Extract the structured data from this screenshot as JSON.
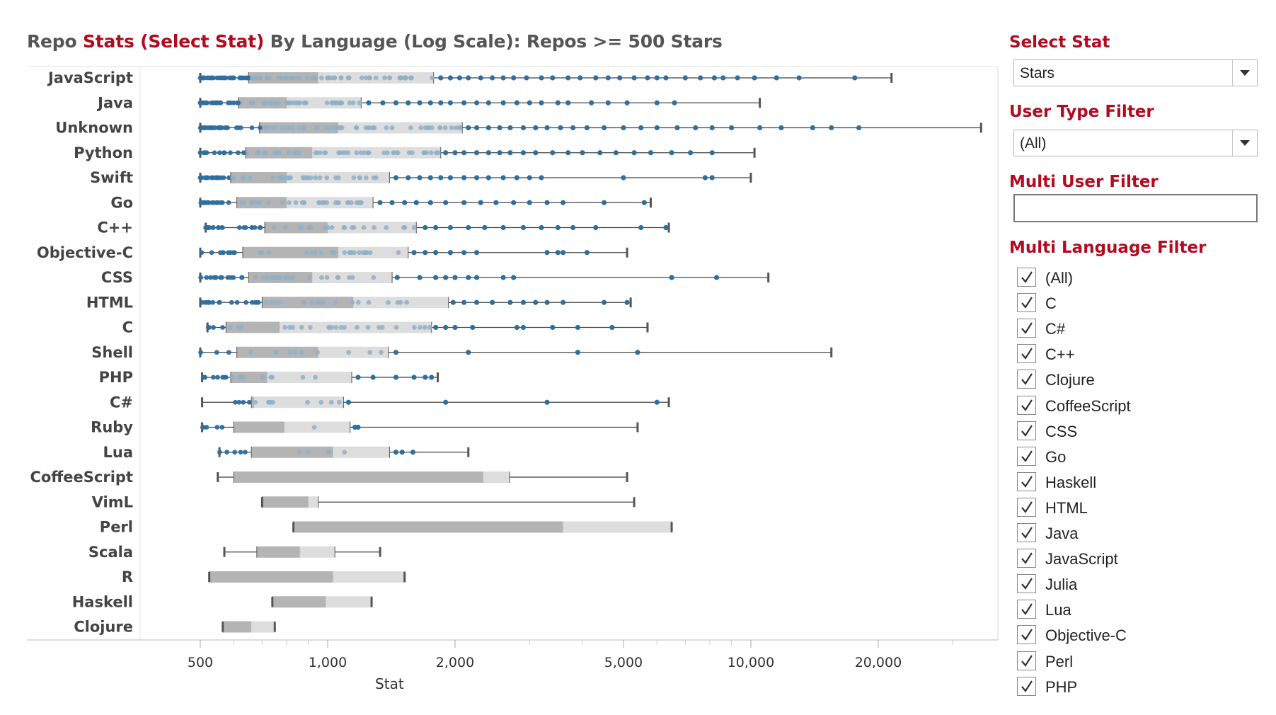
{
  "title": {
    "prefix": "Repo ",
    "accent": "Stats (Select Stat)",
    "suffix": " By Language (Log Scale): Repos >= 500 Stars"
  },
  "colors": {
    "accent": "#b30a1f",
    "dot_dark": "#2f6f9f",
    "dot_light": "#8fb0c9",
    "box_dark": "#b4b4b4",
    "box_light": "#dddddd",
    "whisker": "#444444"
  },
  "chart_data": {
    "type": "box-plot with jittered points",
    "scale": "log",
    "xlabel": "Stat",
    "xlim": [
      400,
      40000
    ],
    "xticks": [
      500,
      1000,
      2000,
      5000,
      10000,
      20000
    ],
    "xtick_labels": [
      "500",
      "1,000",
      "2,000",
      "5,000",
      "10,000",
      "20,000"
    ],
    "grid": false,
    "series": [
      {
        "name": "JavaScript",
        "min": 500,
        "q1": 650,
        "median": 950,
        "q3": 1780,
        "max": 21500,
        "outliers": [
          1850,
          1950,
          2050,
          2150,
          2300,
          2450,
          2600,
          2750,
          2950,
          3200,
          3400,
          3700,
          3950,
          4300,
          4600,
          4900,
          5300,
          5700,
          6000,
          6300,
          7000,
          7600,
          8200,
          8600,
          9300,
          10200,
          11500,
          13000,
          17600
        ]
      },
      {
        "name": "Java",
        "min": 500,
        "q1": 615,
        "median": 800,
        "q3": 1200,
        "max": 10500,
        "outliers": [
          1250,
          1350,
          1450,
          1550,
          1650,
          1750,
          1850,
          1950,
          2100,
          2250,
          2400,
          2600,
          2800,
          3000,
          3200,
          3500,
          3700,
          4200,
          4600,
          5100,
          6000,
          6600
        ]
      },
      {
        "name": "Unknown",
        "min": 500,
        "q1": 690,
        "median": 1060,
        "q3": 2080,
        "max": 35000,
        "outliers": [
          2150,
          2250,
          2400,
          2550,
          2700,
          2900,
          3100,
          3300,
          3550,
          3800,
          4100,
          4500,
          5000,
          5500,
          6000,
          6700,
          7400,
          8100,
          9000,
          10500,
          11800,
          14000,
          15500,
          18000
        ]
      },
      {
        "name": "Python",
        "min": 500,
        "q1": 640,
        "median": 920,
        "q3": 1850,
        "max": 10200,
        "outliers": [
          1900,
          2000,
          2100,
          2250,
          2400,
          2550,
          2700,
          2900,
          3100,
          3400,
          3700,
          4000,
          4400,
          4800,
          5300,
          5800,
          6500,
          7200,
          8100
        ]
      },
      {
        "name": "Swift",
        "min": 500,
        "q1": 590,
        "median": 800,
        "q3": 1400,
        "max": 10000,
        "outliers": [
          1450,
          1550,
          1650,
          1750,
          1850,
          1950,
          2100,
          2250,
          2400,
          2600,
          2800,
          3000,
          3200,
          5000,
          7800,
          8100
        ]
      },
      {
        "name": "Go",
        "min": 500,
        "q1": 610,
        "median": 800,
        "q3": 1280,
        "max": 5800,
        "outliers": [
          1330,
          1420,
          1520,
          1620,
          1750,
          1900,
          2100,
          2300,
          2500,
          2750,
          3000,
          3300,
          3600,
          4500,
          5600
        ]
      },
      {
        "name": "C++",
        "min": 515,
        "q1": 710,
        "median": 1000,
        "q3": 1620,
        "max": 6400,
        "outliers": [
          1700,
          1800,
          1950,
          2150,
          2350,
          2600,
          2900,
          3200,
          3500,
          3800,
          4300,
          5500,
          6300
        ]
      },
      {
        "name": "Objective-C",
        "min": 500,
        "q1": 630,
        "median": 1060,
        "q3": 1550,
        "max": 5100,
        "outliers": [
          1600,
          1700,
          1800,
          1950,
          2100,
          2250,
          3300,
          3500,
          3600,
          4100
        ]
      },
      {
        "name": "CSS",
        "min": 500,
        "q1": 650,
        "median": 920,
        "q3": 1420,
        "max": 11000,
        "outliers": [
          1460,
          1650,
          1800,
          1900,
          2000,
          2150,
          2250,
          2600,
          2750,
          6500,
          8300
        ]
      },
      {
        "name": "HTML",
        "min": 500,
        "q1": 700,
        "median": 1150,
        "q3": 1930,
        "max": 5200,
        "outliers": [
          1980,
          2100,
          2250,
          2450,
          2700,
          2900,
          3100,
          3300,
          3600,
          4500,
          5100
        ]
      },
      {
        "name": "C",
        "min": 520,
        "q1": 575,
        "median": 770,
        "q3": 1760,
        "max": 5700,
        "outliers": [
          1800,
          1900,
          2000,
          2200,
          2800,
          2900,
          3400,
          3900,
          4700
        ]
      },
      {
        "name": "Shell",
        "min": 500,
        "q1": 610,
        "median": 950,
        "q3": 1390,
        "max": 15500,
        "outliers": [
          1450,
          2150,
          3900,
          5400
        ]
      },
      {
        "name": "PHP",
        "min": 505,
        "q1": 590,
        "median": 720,
        "q3": 1140,
        "max": 1820,
        "outliers": [
          1180,
          1280,
          1450,
          1600,
          1700,
          1760
        ]
      },
      {
        "name": "C#",
        "min": 505,
        "q1": 660,
        "median": 670,
        "q3": 1090,
        "max": 6400,
        "outliers": [
          1120,
          1900,
          3300,
          6000
        ]
      },
      {
        "name": "Ruby",
        "min": 505,
        "q1": 600,
        "median": 790,
        "q3": 1130,
        "max": 5400,
        "outliers": [
          1160,
          1180
        ]
      },
      {
        "name": "Lua",
        "min": 555,
        "q1": 660,
        "median": 1030,
        "q3": 1400,
        "max": 2150,
        "outliers": [
          1450,
          1500,
          1590
        ]
      },
      {
        "name": "CoffeeScript",
        "min": 550,
        "q1": 600,
        "median": 2330,
        "q3": 2690,
        "max": 5100,
        "outliers": []
      },
      {
        "name": "VimL",
        "min": 700,
        "q1": 700,
        "median": 900,
        "q3": 950,
        "max": 5300,
        "outliers": []
      },
      {
        "name": "Perl",
        "min": 830,
        "q1": 830,
        "median": 3600,
        "q3": 6500,
        "max": 6500,
        "outliers": []
      },
      {
        "name": "Scala",
        "min": 570,
        "q1": 680,
        "median": 860,
        "q3": 1040,
        "max": 1330,
        "outliers": []
      },
      {
        "name": "R",
        "min": 525,
        "q1": 525,
        "median": 1030,
        "q3": 1520,
        "max": 1520,
        "outliers": []
      },
      {
        "name": "Haskell",
        "min": 740,
        "q1": 740,
        "median": 990,
        "q3": 1270,
        "max": 1270,
        "outliers": []
      },
      {
        "name": "Clojure",
        "min": 565,
        "q1": 565,
        "median": 660,
        "q3": 750,
        "max": 750,
        "outliers": []
      }
    ]
  },
  "filters": {
    "select_stat": {
      "label": "Select Stat",
      "value": "Stars"
    },
    "user_type": {
      "label": "User Type Filter",
      "value": "(All)"
    },
    "multi_user": {
      "label": "Multi User Filter",
      "value": ""
    },
    "multi_language": {
      "label": "Multi Language Filter",
      "items": [
        "(All)",
        "C",
        "C#",
        "C++",
        "Clojure",
        "CoffeeScript",
        "CSS",
        "Go",
        "Haskell",
        "HTML",
        "Java",
        "JavaScript",
        "Julia",
        "Lua",
        "Objective-C",
        "Perl",
        "PHP"
      ]
    }
  }
}
